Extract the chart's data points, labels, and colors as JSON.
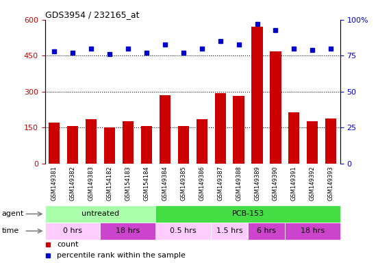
{
  "title": "GDS3954 / 232165_at",
  "samples": [
    "GSM149381",
    "GSM149382",
    "GSM149383",
    "GSM154182",
    "GSM154183",
    "GSM154184",
    "GSM149384",
    "GSM149385",
    "GSM149386",
    "GSM149387",
    "GSM149388",
    "GSM149389",
    "GSM149390",
    "GSM149391",
    "GSM149392",
    "GSM149393"
  ],
  "counts": [
    170,
    158,
    185,
    152,
    178,
    158,
    285,
    158,
    185,
    293,
    283,
    570,
    468,
    213,
    178,
    188
  ],
  "percentiles": [
    78,
    77,
    80,
    76,
    80,
    77,
    83,
    77,
    80,
    85,
    83,
    97,
    93,
    80,
    79,
    80
  ],
  "ylim_left": [
    0,
    600
  ],
  "ylim_right": [
    0,
    100
  ],
  "yticks_left": [
    0,
    150,
    300,
    450,
    600
  ],
  "yticks_right": [
    0,
    25,
    50,
    75,
    100
  ],
  "bar_color": "#cc0000",
  "dot_color": "#0000cc",
  "bg_color": "#ffffff",
  "xticklabel_bg": "#cccccc",
  "agent_row": [
    {
      "label": "untreated",
      "start": 0,
      "end": 6,
      "color": "#aaffaa"
    },
    {
      "label": "PCB-153",
      "start": 6,
      "end": 16,
      "color": "#44dd44"
    }
  ],
  "time_row": [
    {
      "label": "0 hrs",
      "start": 0,
      "end": 3,
      "color": "#ffccff"
    },
    {
      "label": "18 hrs",
      "start": 3,
      "end": 6,
      "color": "#cc44cc"
    },
    {
      "label": "0.5 hrs",
      "start": 6,
      "end": 9,
      "color": "#ffccff"
    },
    {
      "label": "1.5 hrs",
      "start": 9,
      "end": 11,
      "color": "#ffccff"
    },
    {
      "label": "6 hrs",
      "start": 11,
      "end": 13,
      "color": "#cc44cc"
    },
    {
      "label": "18 hrs",
      "start": 13,
      "end": 16,
      "color": "#cc44cc"
    }
  ],
  "left_tick_color": "#cc0000",
  "right_tick_color": "#0000cc",
  "label_left": "agent",
  "label_time": "time"
}
